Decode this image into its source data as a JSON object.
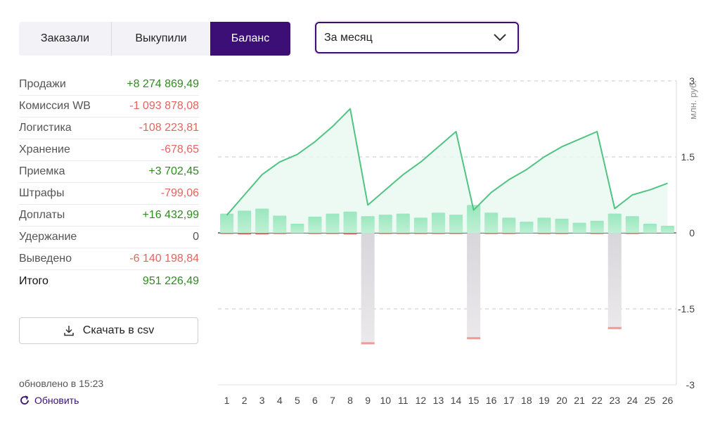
{
  "tabs": [
    {
      "label": "Заказали",
      "active": false
    },
    {
      "label": "Выкупили",
      "active": false
    },
    {
      "label": "Баланс",
      "active": true
    }
  ],
  "period": {
    "selected": "За месяц"
  },
  "summary": [
    {
      "label": "Продажи",
      "value": "+8 274 869,49",
      "tone": "pos"
    },
    {
      "label": "Комиссия WB",
      "value": "-1 093 878,08",
      "tone": "neg"
    },
    {
      "label": "Логистика",
      "value": "-108 223,81",
      "tone": "neg"
    },
    {
      "label": "Хранение",
      "value": "-678,65",
      "tone": "neg"
    },
    {
      "label": "Приемка",
      "value": "+3 702,45",
      "tone": "pos"
    },
    {
      "label": "Штрафы",
      "value": "-799,06",
      "tone": "neg"
    },
    {
      "label": "Доплаты",
      "value": "+16 432,99",
      "tone": "pos"
    },
    {
      "label": "Удержание",
      "value": "0",
      "tone": "zero"
    },
    {
      "label": "Выведено",
      "value": "-6 140 198,84",
      "tone": "neg"
    },
    {
      "label": "Итого",
      "value": "951 226,49",
      "tone": "pos",
      "total": true
    }
  ],
  "download": {
    "label": "Скачать в csv",
    "icon": "download-icon"
  },
  "updated": {
    "text": "обновлено в 15:23"
  },
  "refresh": {
    "label": "Обновить",
    "icon": "refresh-icon"
  },
  "colors": {
    "accent": "#3b0f76",
    "positive": "#2f8a1f",
    "negative": "#e2655f",
    "bar_positive": "#8ee3b6",
    "bar_negative": "#e4e1e5",
    "line": "#4fc483"
  },
  "chart_data": {
    "type": "bar+line",
    "unit_label": "млн. руб.",
    "ylim": [
      -3,
      3
    ],
    "yticks": [
      "3",
      "1.5",
      "0",
      "-1.5",
      "-3"
    ],
    "ytick_values": [
      3,
      1.5,
      0,
      -1.5,
      -3
    ],
    "grid": true,
    "categories": [
      "1",
      "2",
      "3",
      "4",
      "5",
      "6",
      "7",
      "8",
      "9",
      "10",
      "11",
      "12",
      "13",
      "14",
      "15",
      "16",
      "17",
      "18",
      "19",
      "20",
      "21",
      "22",
      "23",
      "24",
      "25",
      "26"
    ],
    "series": [
      {
        "kind": "bar_positive",
        "values": [
          0.38,
          0.44,
          0.48,
          0.34,
          0.18,
          0.32,
          0.38,
          0.42,
          0.33,
          0.36,
          0.38,
          0.3,
          0.4,
          0.36,
          0.55,
          0.4,
          0.3,
          0.22,
          0.3,
          0.28,
          0.2,
          0.24,
          0.38,
          0.33,
          0.18,
          0.14
        ]
      },
      {
        "kind": "bar_negative",
        "values": [
          -0.02,
          -0.03,
          -0.03,
          -0.02,
          -0.01,
          -0.02,
          -0.02,
          -0.03,
          -2.2,
          -0.02,
          -0.02,
          -0.02,
          -0.02,
          -0.02,
          -2.1,
          -0.02,
          -0.02,
          -0.01,
          -0.02,
          -0.02,
          -0.01,
          -0.02,
          -1.9,
          -0.02,
          -0.01,
          -0.01
        ]
      },
      {
        "kind": "line",
        "values": [
          0.35,
          0.75,
          1.15,
          1.4,
          1.55,
          1.8,
          2.1,
          2.45,
          0.55,
          0.85,
          1.15,
          1.4,
          1.7,
          2.0,
          0.45,
          0.8,
          1.05,
          1.25,
          1.5,
          1.7,
          1.85,
          2.0,
          0.48,
          0.75,
          0.85,
          0.98
        ]
      }
    ]
  }
}
